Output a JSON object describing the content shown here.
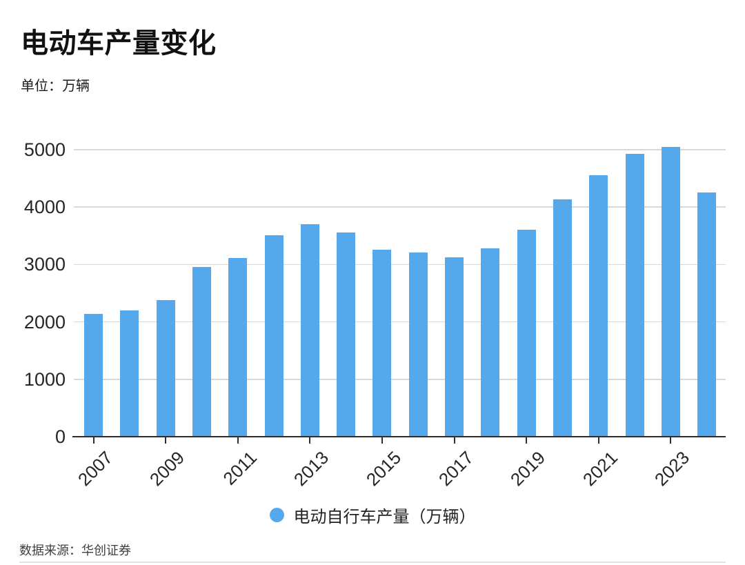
{
  "header": {
    "title": "电动车产量变化",
    "subtitle": "单位：万辆"
  },
  "legend": {
    "label": "电动自行车产量（万辆）"
  },
  "footer": {
    "source": "数据来源：华创证券"
  },
  "colors": {
    "bar_fill": "#55a8ec",
    "axis_line": "#2e2e2e",
    "gridline": "#d9d9d9",
    "text": "#262626",
    "divider": "#e2e2e2"
  },
  "chart_data": {
    "type": "bar",
    "title": "电动车产量变化",
    "unit_label": "单位：万辆",
    "series_name": "电动自行车产量（万辆）",
    "categories": [
      "2007",
      "2008",
      "2009",
      "2010",
      "2011",
      "2012",
      "2013",
      "2014",
      "2015",
      "2016",
      "2017",
      "2018",
      "2019",
      "2020",
      "2021",
      "2022",
      "2023",
      "2024"
    ],
    "values": [
      2140,
      2195,
      2375,
      2955,
      3110,
      3510,
      3700,
      3555,
      3260,
      3215,
      3120,
      3280,
      3610,
      4135,
      4550,
      4925,
      5045,
      4250
    ],
    "xlabel": "",
    "ylabel": "",
    "ylim": [
      0,
      5200
    ],
    "yticks": [
      0,
      1000,
      2000,
      3000,
      4000,
      5000
    ],
    "x_tick_labels": [
      "2007",
      "2009",
      "2011",
      "2013",
      "2015",
      "2017",
      "2019",
      "2021",
      "2023"
    ],
    "grid": "horizontal",
    "legend_position": "bottom",
    "source": "数据来源：华创证券"
  }
}
